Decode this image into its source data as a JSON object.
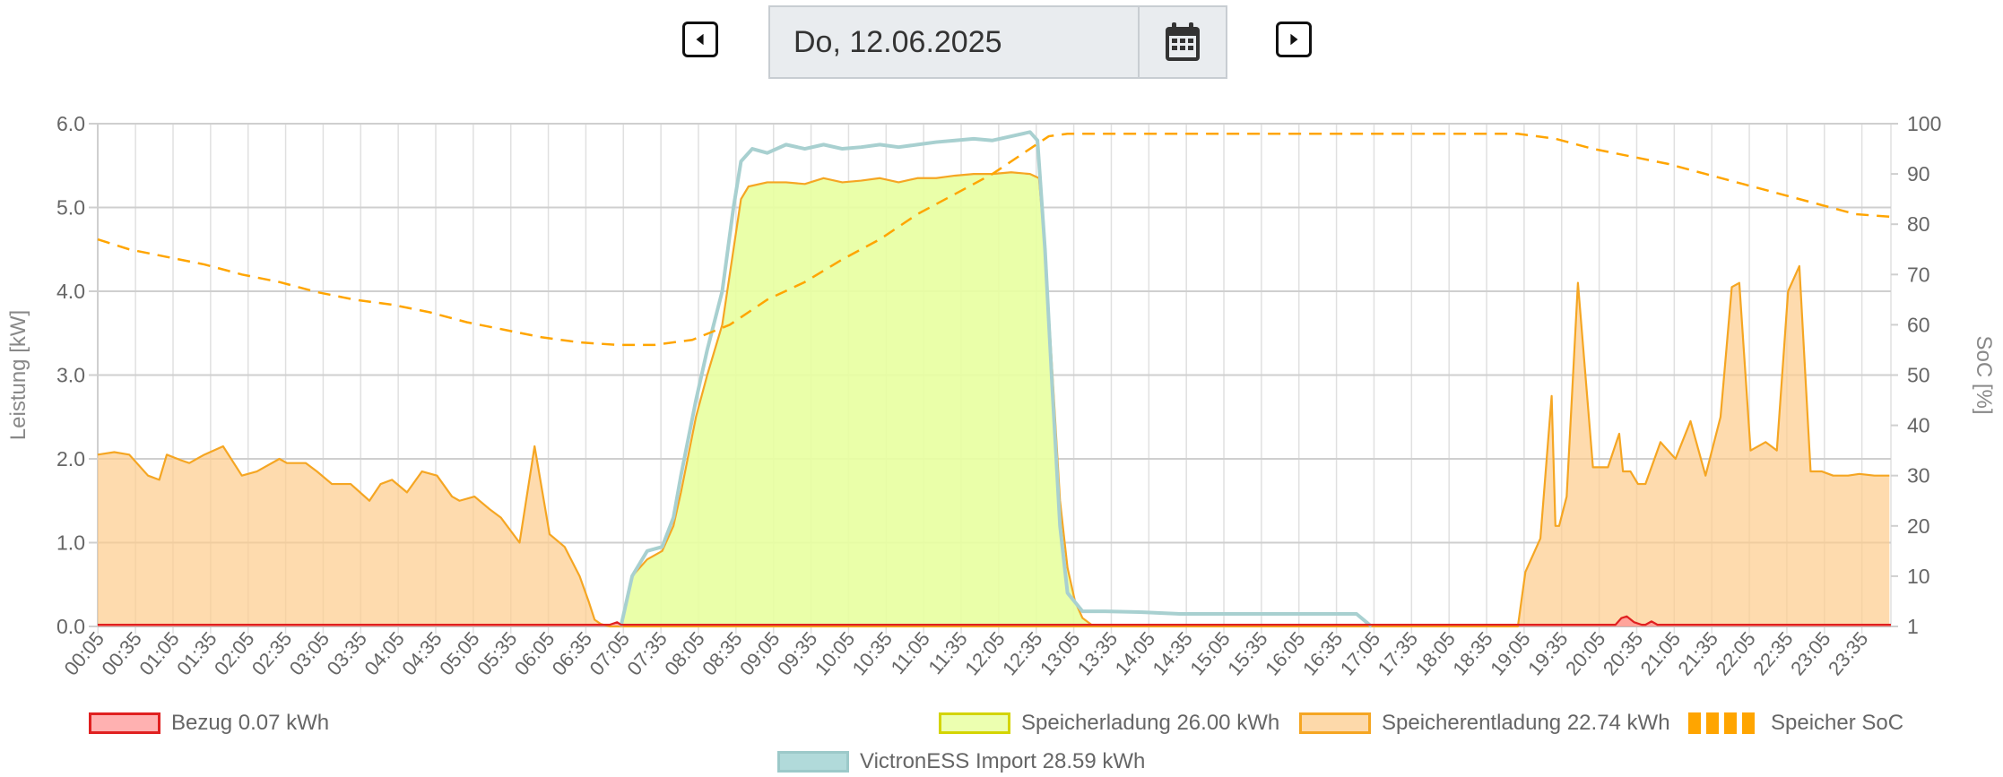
{
  "header": {
    "date": "Do, 12.06.2025",
    "prev_icon": "caret-left-icon",
    "next_icon": "caret-right-icon",
    "calendar_icon": "calendar-icon"
  },
  "legend": [
    {
      "label": "Bezug 0.07 kWh",
      "fill": "#ffb1b1",
      "stroke": "#e02020",
      "style": "box"
    },
    {
      "label": "Speicherladung 26.00 kWh",
      "fill": "#ecffb0",
      "stroke": "#d4d400",
      "style": "box"
    },
    {
      "label": "Speicherentladung 22.74 kWh",
      "fill": "#fdd9aa",
      "stroke": "#f5a623",
      "style": "box"
    },
    {
      "label": "Speicher SoC",
      "fill": "#ffa500",
      "stroke": "#ffa500",
      "style": "dashed"
    },
    {
      "label": "VictronESS Import 28.59 kWh",
      "fill": "#b1dada",
      "stroke": "#9cc9c9",
      "style": "box"
    }
  ],
  "chart_data": {
    "type": "area",
    "xlabel": "",
    "ylabel": "Leistung [kW]",
    "y2label": "SoC [%]",
    "ylim": [
      0,
      6
    ],
    "y2lim": [
      0,
      100
    ],
    "yticks": [
      "0.0",
      "1.0",
      "2.0",
      "3.0",
      "4.0",
      "5.0",
      "6.0"
    ],
    "y2ticks": [
      "1",
      "10",
      "20",
      "30",
      "40",
      "50",
      "60",
      "70",
      "80",
      "90",
      "100"
    ],
    "x_labels": [
      "00:05",
      "00:35",
      "01:05",
      "01:35",
      "02:05",
      "02:35",
      "03:05",
      "03:35",
      "04:05",
      "04:35",
      "05:05",
      "05:35",
      "06:05",
      "06:35",
      "07:05",
      "07:35",
      "08:05",
      "08:35",
      "09:05",
      "09:35",
      "10:05",
      "10:35",
      "11:05",
      "11:35",
      "12:05",
      "12:35",
      "13:05",
      "13:35",
      "14:05",
      "14:35",
      "15:05",
      "15:35",
      "16:05",
      "16:35",
      "17:05",
      "17:35",
      "18:05",
      "18:35",
      "19:05",
      "19:35",
      "20:05",
      "20:35",
      "21:05",
      "21:35",
      "22:05",
      "22:35",
      "23:05",
      "23:35"
    ],
    "grid": true,
    "legend_position": "bottom",
    "series": [
      {
        "name": "Speicherentladung 22.74 kWh",
        "color": "#f5a623",
        "fill": "rgba(253,204,140,0.7)",
        "x": [
          0.08,
          0.3,
          0.5,
          0.75,
          0.9,
          1.0,
          1.2,
          1.3,
          1.5,
          1.75,
          2.0,
          2.2,
          2.5,
          2.6,
          2.85,
          3.0,
          3.2,
          3.45,
          3.7,
          3.85,
          4.0,
          4.2,
          4.4,
          4.6,
          4.8,
          4.9,
          5.1,
          5.3,
          5.45,
          5.7,
          5.9,
          6.1,
          6.3,
          6.5,
          6.62,
          6.7,
          6.78,
          6.9,
          7.0,
          7.08,
          7.2,
          19.0,
          19.1,
          19.3,
          19.45,
          19.5,
          19.55,
          19.65,
          19.8,
          20.0,
          20.2,
          20.35,
          20.4,
          20.5,
          20.6,
          20.7,
          20.9,
          21.1,
          21.3,
          21.5,
          21.7,
          21.85,
          21.95,
          22.1,
          22.3,
          22.45,
          22.6,
          22.75,
          22.9,
          23.05,
          23.2,
          23.3,
          23.4,
          23.55,
          23.75,
          23.95
        ],
        "y": [
          2.05,
          2.08,
          2.05,
          1.8,
          1.75,
          2.05,
          1.98,
          1.95,
          2.05,
          2.15,
          1.8,
          1.85,
          2.0,
          1.95,
          1.95,
          1.85,
          1.7,
          1.7,
          1.5,
          1.7,
          1.75,
          1.6,
          1.85,
          1.8,
          1.55,
          1.5,
          1.55,
          1.4,
          1.3,
          1.0,
          2.15,
          1.1,
          0.95,
          0.6,
          0.3,
          0.08,
          0.03,
          0,
          0,
          0,
          0,
          0,
          0.65,
          1.05,
          2.75,
          1.2,
          1.2,
          1.55,
          4.1,
          1.9,
          1.9,
          2.3,
          1.85,
          1.85,
          1.7,
          1.7,
          2.2,
          2.0,
          2.45,
          1.8,
          2.5,
          4.05,
          4.1,
          2.1,
          2.2,
          2.1,
          4.0,
          4.3,
          1.85,
          1.85,
          1.8,
          1.8,
          1.8,
          1.82,
          1.8,
          1.8
        ]
      },
      {
        "name": "Speicherladung 26.00 kWh",
        "color": "#f5a623",
        "fill": "rgba(232,255,160,0.9)",
        "x": [
          7.05,
          7.2,
          7.4,
          7.6,
          7.75,
          7.85,
          8.05,
          8.2,
          8.4,
          8.55,
          8.65,
          8.75,
          9.0,
          9.25,
          9.5,
          9.75,
          10.0,
          10.25,
          10.5,
          10.75,
          11.0,
          11.25,
          11.5,
          11.75,
          12.0,
          12.25,
          12.5,
          12.62,
          12.7,
          12.8,
          12.9,
          13.0,
          13.1,
          13.2,
          13.35
        ],
        "y": [
          0,
          0.6,
          0.8,
          0.9,
          1.2,
          1.6,
          2.5,
          3.0,
          3.6,
          4.5,
          5.1,
          5.25,
          5.3,
          5.3,
          5.28,
          5.35,
          5.3,
          5.32,
          5.35,
          5.3,
          5.35,
          5.35,
          5.38,
          5.4,
          5.4,
          5.42,
          5.4,
          5.35,
          4.5,
          3.0,
          1.5,
          0.7,
          0.3,
          0.1,
          0
        ]
      },
      {
        "name": "VictronESS Import 28.59 kWh",
        "color": "#a8d0d0",
        "fill": "none",
        "x": [
          7.05,
          7.2,
          7.4,
          7.6,
          7.75,
          7.85,
          8.05,
          8.2,
          8.4,
          8.55,
          8.65,
          8.8,
          9.0,
          9.25,
          9.5,
          9.75,
          10.0,
          10.25,
          10.5,
          10.75,
          11.0,
          11.25,
          11.5,
          11.75,
          12.0,
          12.25,
          12.5,
          12.6,
          12.7,
          12.8,
          12.9,
          13.0,
          13.2,
          13.5,
          14.0,
          14.5,
          15.0,
          15.5,
          16.0,
          16.5,
          16.85,
          17.05
        ],
        "y": [
          0,
          0.6,
          0.9,
          0.95,
          1.3,
          1.8,
          2.7,
          3.3,
          4.0,
          5.0,
          5.55,
          5.7,
          5.65,
          5.75,
          5.7,
          5.75,
          5.7,
          5.72,
          5.75,
          5.72,
          5.75,
          5.78,
          5.8,
          5.82,
          5.8,
          5.85,
          5.9,
          5.8,
          4.5,
          2.8,
          1.2,
          0.4,
          0.18,
          0.18,
          0.17,
          0.15,
          0.15,
          0.15,
          0.15,
          0.15,
          0.15,
          0
        ]
      },
      {
        "name": "Bezug 0.07 kWh",
        "color": "#e02020",
        "fill": "rgba(255,150,150,0.8)",
        "x": [
          0,
          6.9,
          7.0,
          7.05,
          7.1,
          20.3,
          20.38,
          20.45,
          20.55,
          20.65,
          20.7,
          20.78,
          20.86,
          24.0
        ],
        "y": [
          0.02,
          0.02,
          0.05,
          0.02,
          0.02,
          0.02,
          0.1,
          0.12,
          0.05,
          0.02,
          0.02,
          0.06,
          0.02,
          0.02
        ]
      },
      {
        "name": "Speicher SoC",
        "color": "#ffa500",
        "axis": "y2",
        "dashed": true,
        "x": [
          0.08,
          0.5,
          1.0,
          1.5,
          2.0,
          2.5,
          3.0,
          3.5,
          4.0,
          4.5,
          5.0,
          5.5,
          6.0,
          6.5,
          7.0,
          7.5,
          8.0,
          8.5,
          9.0,
          9.5,
          10.0,
          10.5,
          11.0,
          11.5,
          12.0,
          12.5,
          12.75,
          13.0,
          14.0,
          15.0,
          16.0,
          17.0,
          18.0,
          19.0,
          19.5,
          20.0,
          20.5,
          21.0,
          21.5,
          22.0,
          22.5,
          23.0,
          23.5,
          23.95
        ],
        "y": [
          77,
          75,
          73.5,
          72,
          70,
          68.5,
          66.5,
          65,
          64,
          62.5,
          60.5,
          59,
          57.5,
          56.5,
          56,
          56,
          57,
          60,
          65,
          68.5,
          73,
          77,
          82,
          86,
          90,
          95,
          97.5,
          98,
          98,
          98,
          98,
          98,
          98,
          98,
          97,
          95,
          93.5,
          92,
          90,
          88,
          86,
          84,
          82,
          81.5
        ]
      }
    ]
  }
}
